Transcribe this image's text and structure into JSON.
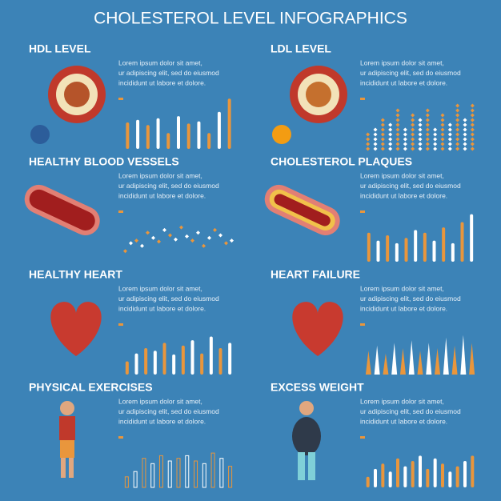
{
  "title": "CHOLESTEROL LEVEL INFOGRAPHICS",
  "colors": [
    "#e9963c",
    "#ffffff"
  ],
  "panels": [
    {
      "heading": "HDL LEVEL",
      "text": [
        "Lorem ipsum dolor sit amet,",
        "ur adipiscing elit, sed do eiusmod",
        "incididunt ut labore et dolore."
      ],
      "chart": {
        "style": "bars",
        "values": [
          50,
          55,
          45,
          58,
          30,
          62,
          48,
          52,
          30,
          70,
          95
        ]
      }
    },
    {
      "heading": "LDL LEVEL",
      "text": [
        "Lorem ipsum dolor sit amet,",
        "ur adipiscing elit, sed do eiusmod",
        "incididunt ut labore et dolore."
      ],
      "chart": {
        "style": "diamonds",
        "values": [
          30,
          45,
          60,
          50,
          75,
          40,
          65,
          55,
          80,
          45,
          70,
          50,
          90,
          60,
          85
        ]
      }
    },
    {
      "heading": "HEALTHY BLOOD VESSELS",
      "text": [
        "Lorem ipsum dolor sit amet,",
        "ur adipiscing elit, sed do eiusmod",
        "incididunt ut labore et dolore."
      ],
      "chart": {
        "style": "dots",
        "values": [
          20,
          35,
          40,
          30,
          55,
          45,
          38,
          60,
          50,
          42,
          65,
          48,
          40,
          55,
          30,
          45,
          60,
          50,
          35,
          40
        ]
      }
    },
    {
      "heading": "CHOLESTEROL PLAQUES",
      "text": [
        "Lorem ipsum dolor sit amet,",
        "ur adipiscing elit, sed do eiusmod",
        "incididunt ut labore et dolore."
      ],
      "chart": {
        "style": "bars",
        "values": [
          55,
          40,
          50,
          35,
          45,
          60,
          55,
          40,
          65,
          35,
          75,
          90
        ]
      }
    },
    {
      "heading": "HEALTHY HEART",
      "text": [
        "Lorem ipsum dolor sit amet,",
        "ur adipiscing elit, sed do eiusmod",
        "incididunt ut labore et dolore."
      ],
      "chart": {
        "style": "bars",
        "values": [
          25,
          40,
          50,
          45,
          60,
          38,
          55,
          65,
          40,
          72,
          50,
          60
        ]
      }
    },
    {
      "heading": "HEART FAILURE",
      "text": [
        "Lorem ipsum dolor sit amet,",
        "ur adipiscing elit, sed do eiusmod",
        "incididunt ut labore et dolore."
      ],
      "chart": {
        "style": "spikes",
        "values": [
          45,
          55,
          40,
          60,
          50,
          65,
          45,
          60,
          50,
          70,
          55,
          75,
          60
        ]
      }
    },
    {
      "heading": "PHYSICAL EXERCISES",
      "text": [
        "Lorem ipsum dolor sit amet,",
        "ur adipiscing elit, sed do eiusmod",
        "incididunt ut labore et dolore."
      ],
      "chart": {
        "style": "outline",
        "values": [
          20,
          30,
          55,
          45,
          60,
          50,
          55,
          60,
          50,
          45,
          65,
          55,
          40
        ]
      }
    },
    {
      "heading": "EXCESS WEIGHT",
      "text": [
        "Lorem ipsum dolor sit amet,",
        "ur adipiscing elit, sed do eiusmod",
        "incididunt ut labore et dolore."
      ],
      "chart": {
        "style": "bars",
        "values": [
          20,
          35,
          45,
          30,
          55,
          40,
          50,
          60,
          35,
          55,
          45,
          30,
          40,
          50,
          60
        ]
      }
    }
  ]
}
